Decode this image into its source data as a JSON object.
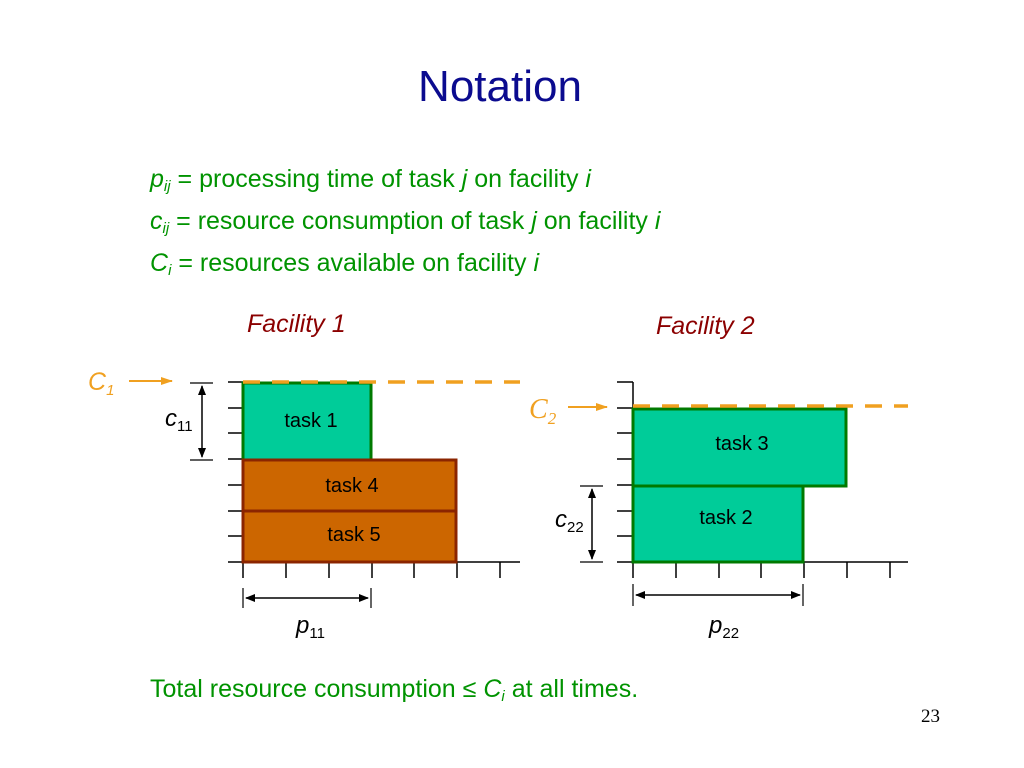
{
  "title": "Notation",
  "definitions": [
    {
      "symbol": "p",
      "subscript": "ij",
      "eq": "=",
      "text": "processing time of task",
      "var1": "j",
      "mid": "on facility",
      "var2": "i"
    },
    {
      "symbol": "c",
      "subscript": "ij",
      "eq": "=",
      "text": "resource consumption of task",
      "var1": "j",
      "mid": "on facility",
      "var2": "i"
    },
    {
      "symbol": "C",
      "subscript": "i",
      "eq": "=",
      "text": "resources available on facility",
      "var1": "i"
    }
  ],
  "facility1": {
    "label": "Facility 1",
    "capacity_symbol": "C",
    "capacity_sub": "1",
    "tasks": [
      "task 1",
      "task 4",
      "task 5"
    ],
    "c_label": "c",
    "c_sub": "11",
    "p_label": "p",
    "p_sub": "11"
  },
  "facility2": {
    "label": "Facility 2",
    "capacity_symbol": "C",
    "capacity_sub": "2",
    "tasks": [
      "task 3",
      "task 2"
    ],
    "c_label": "c",
    "c_sub": "22",
    "p_label": "p",
    "p_sub": "22"
  },
  "footnote": {
    "text": "Total resource consumption",
    "symbol": "≤",
    "var": "C",
    "sub": "i",
    "tail": "at all times."
  },
  "page_number": "23",
  "colors": {
    "title": "#0b0b8f",
    "green_text": "#009300",
    "facility": "#8b0000",
    "capacity": "#f0a020",
    "green_box": "#00cc99",
    "green_border": "#007a00",
    "orange_box": "#cc6600",
    "orange_border": "#8b2500"
  }
}
